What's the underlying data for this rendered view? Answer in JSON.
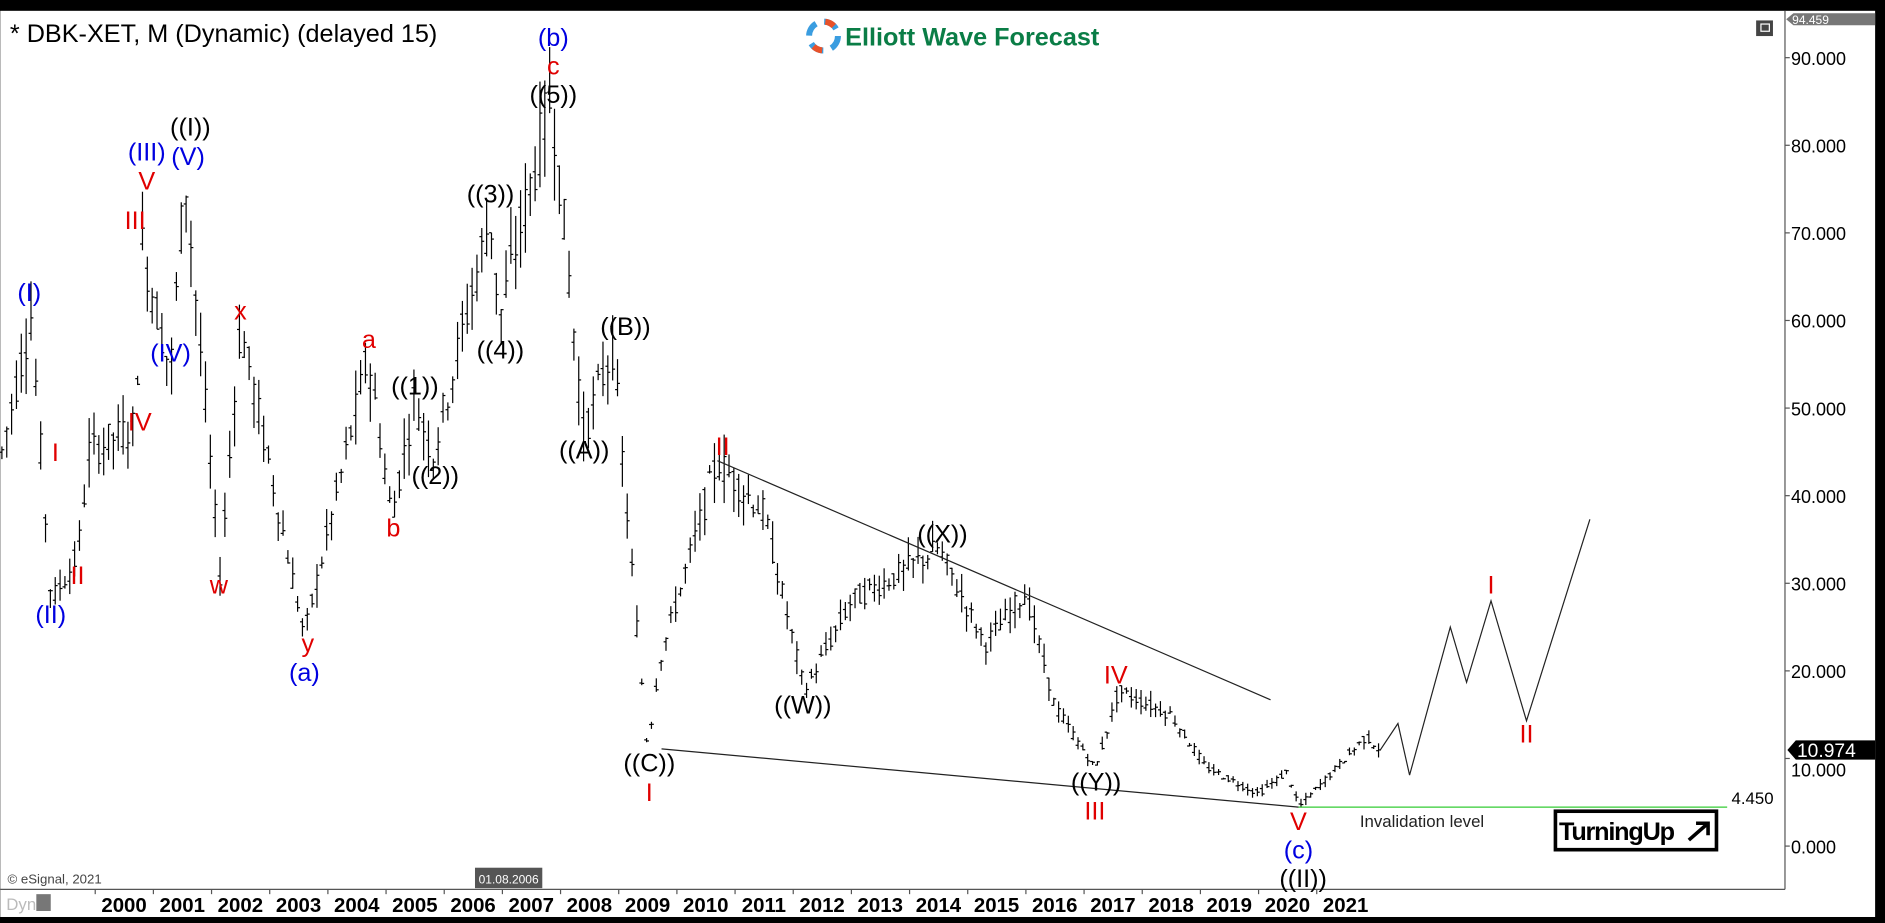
{
  "header": {
    "title": "* DBK-XET, M (Dynamic) (delayed 15)",
    "logo_text": "Elliott Wave Forecast"
  },
  "footer": {
    "copyright": "© eSignal, 2021",
    "dyn_label": "Dyn",
    "cursor_date": "01.08.2006"
  },
  "colors": {
    "red": "#e00000",
    "blue": "#0000e0",
    "black": "#000000",
    "green": "#33cc33",
    "logo_green": "#0a7d46"
  },
  "chart_data": {
    "type": "ohlc",
    "xlabel": "",
    "ylabel": "",
    "ylim": [
      -3,
      94.459
    ],
    "xlim": [
      1997.9,
      2029.0
    ],
    "grid": false,
    "x_ticks": [
      "2000",
      "2001",
      "2002",
      "2003",
      "2004",
      "2005",
      "2006",
      "2007",
      "2008",
      "2009",
      "2010",
      "2011",
      "2012",
      "2013",
      "2014",
      "2015",
      "2016",
      "2017",
      "2018",
      "2019",
      "2020",
      "2021"
    ],
    "y_ticks": [
      "0.000",
      "10.000",
      "20.000",
      "30.000",
      "40.000",
      "50.000",
      "60.000",
      "70.000",
      "80.000",
      "90.000"
    ],
    "y_top_label": "94.459",
    "last_price": "10.974",
    "price_pivots": [
      {
        "x": 1997.9,
        "y": 45
      },
      {
        "x": 1998.4,
        "y": 60.6
      },
      {
        "x": 1998.75,
        "y": 28
      },
      {
        "x": 1999.2,
        "y": 33
      },
      {
        "x": 1999.4,
        "y": 45
      },
      {
        "x": 2000.2,
        "y": 48
      },
      {
        "x": 2000.3,
        "y": 69
      },
      {
        "x": 2000.8,
        "y": 54
      },
      {
        "x": 2001.05,
        "y": 76.7
      },
      {
        "x": 2001.65,
        "y": 31
      },
      {
        "x": 2002.0,
        "y": 59.5
      },
      {
        "x": 2003.1,
        "y": 24
      },
      {
        "x": 2004.2,
        "y": 56
      },
      {
        "x": 2004.6,
        "y": 37.6
      },
      {
        "x": 2005.0,
        "y": 51.3
      },
      {
        "x": 2005.3,
        "y": 44.4
      },
      {
        "x": 2006.3,
        "y": 72
      },
      {
        "x": 2006.45,
        "y": 60
      },
      {
        "x": 2007.35,
        "y": 86
      },
      {
        "x": 2007.9,
        "y": 47
      },
      {
        "x": 2008.4,
        "y": 57
      },
      {
        "x": 2009.0,
        "y": 11
      },
      {
        "x": 2009.2,
        "y": 21
      },
      {
        "x": 2010.2,
        "y": 44
      },
      {
        "x": 2011.0,
        "y": 38
      },
      {
        "x": 2011.7,
        "y": 17.7
      },
      {
        "x": 2012.5,
        "y": 28
      },
      {
        "x": 2013.3,
        "y": 31
      },
      {
        "x": 2014.0,
        "y": 34
      },
      {
        "x": 2014.8,
        "y": 23
      },
      {
        "x": 2015.5,
        "y": 29
      },
      {
        "x": 2016.0,
        "y": 16
      },
      {
        "x": 2016.7,
        "y": 8.8
      },
      {
        "x": 2017.1,
        "y": 17.7
      },
      {
        "x": 2018.0,
        "y": 15
      },
      {
        "x": 2018.6,
        "y": 9
      },
      {
        "x": 2019.5,
        "y": 6
      },
      {
        "x": 2020.0,
        "y": 8.5
      },
      {
        "x": 2020.2,
        "y": 4.45
      },
      {
        "x": 2021.35,
        "y": 12.5
      },
      {
        "x": 2021.6,
        "y": 11
      }
    ],
    "projection": [
      {
        "x": 2021.6,
        "y": 11.0
      },
      {
        "x": 2021.9,
        "y": 14.0
      },
      {
        "x": 2022.1,
        "y": 8.1
      },
      {
        "x": 2022.8,
        "y": 25.0
      },
      {
        "x": 2023.08,
        "y": 18.7
      },
      {
        "x": 2023.5,
        "y": 28.0
      },
      {
        "x": 2024.11,
        "y": 14.3
      },
      {
        "x": 2025.2,
        "y": 37.3
      }
    ],
    "trendlines": [
      {
        "from": {
          "x": 2010.2,
          "y": 44
        },
        "to": {
          "x": 2019.71,
          "y": 16.7
        }
      },
      {
        "from": {
          "x": 2009.24,
          "y": 11.1
        },
        "to": {
          "x": 2020.19,
          "y": 4.45
        }
      }
    ],
    "invalidation": {
      "value": 4.45,
      "value_label": "4.450",
      "label": "Invalidation level",
      "from_x": 2020.19,
      "to_x": 2027.56
    },
    "badge": "TurningUp",
    "wave_labels": [
      {
        "text": "(b)",
        "color": "blue",
        "x": 2007.38,
        "y": 92.1
      },
      {
        "text": "c",
        "color": "red",
        "x": 2007.38,
        "y": 90.0
      },
      {
        "text": "((5))",
        "color": "black",
        "x": 2007.38,
        "y": 87.3
      },
      {
        "text": "((I))",
        "color": "black",
        "x": 2001.14,
        "y": 81.9
      },
      {
        "text": "(III)",
        "color": "blue",
        "x": 2000.39,
        "y": 79.0
      },
      {
        "text": "(V)",
        "color": "blue",
        "x": 2001.1,
        "y": 78.5
      },
      {
        "text": "V",
        "color": "red",
        "x": 2000.39,
        "y": 76.0
      },
      {
        "text": "III",
        "color": "red",
        "x": 2000.19,
        "y": 71.2
      },
      {
        "text": "(I)",
        "color": "blue",
        "x": 1998.37,
        "y": 63.0
      },
      {
        "text": "(IV)",
        "color": "blue",
        "x": 2000.8,
        "y": 56.1
      },
      {
        "text": "IV",
        "color": "red",
        "x": 2000.27,
        "y": 48.2
      },
      {
        "text": "I",
        "color": "red",
        "x": 1998.82,
        "y": 44.7
      },
      {
        "text": "II",
        "color": "red",
        "x": 1999.2,
        "y": 30.7
      },
      {
        "text": "(II)",
        "color": "blue",
        "x": 1998.74,
        "y": 26.2
      },
      {
        "text": "x",
        "color": "red",
        "x": 2002.0,
        "y": 60.9
      },
      {
        "text": "w",
        "color": "red",
        "x": 2001.63,
        "y": 29.6
      },
      {
        "text": "y",
        "color": "red",
        "x": 2003.16,
        "y": 22.9
      },
      {
        "text": "(a)",
        "color": "blue",
        "x": 2003.1,
        "y": 19.6
      },
      {
        "text": "a",
        "color": "red",
        "x": 2004.21,
        "y": 57.6
      },
      {
        "text": "b",
        "color": "red",
        "x": 2004.63,
        "y": 36.1
      },
      {
        "text": "((1))",
        "color": "black",
        "x": 2005.0,
        "y": 52.3
      },
      {
        "text": "((2))",
        "color": "black",
        "x": 2005.35,
        "y": 42.1
      },
      {
        "text": "((3))",
        "color": "black",
        "x": 2006.3,
        "y": 74.2
      },
      {
        "text": "((4))",
        "color": "black",
        "x": 2006.47,
        "y": 56.4
      },
      {
        "text": "((B))",
        "color": "black",
        "x": 2008.62,
        "y": 59.1
      },
      {
        "text": "((A))",
        "color": "black",
        "x": 2007.91,
        "y": 45.0
      },
      {
        "text": "((C))",
        "color": "black",
        "x": 2009.03,
        "y": 9.3
      },
      {
        "text": "I",
        "color": "red",
        "x": 2009.03,
        "y": 5.9
      },
      {
        "text": "II",
        "color": "red",
        "x": 2010.29,
        "y": 45.4
      },
      {
        "text": "((W))",
        "color": "black",
        "x": 2011.67,
        "y": 15.9
      },
      {
        "text": "((X))",
        "color": "black",
        "x": 2014.07,
        "y": 35.4
      },
      {
        "text": "IV",
        "color": "red",
        "x": 2017.05,
        "y": 19.3
      },
      {
        "text": "((Y))",
        "color": "black",
        "x": 2016.71,
        "y": 7.1
      },
      {
        "text": "III",
        "color": "red",
        "x": 2016.69,
        "y": 3.8
      },
      {
        "text": "V",
        "color": "red",
        "x": 2020.19,
        "y": 2.6
      },
      {
        "text": "(c)",
        "color": "blue",
        "x": 2020.19,
        "y": 0.3
      },
      {
        "text": "((II))",
        "color": "black",
        "x": 2020.27,
        "y": -2.5
      },
      {
        "text": "I",
        "color": "red",
        "x": 2023.5,
        "y": 29.6
      },
      {
        "text": "II",
        "color": "red",
        "x": 2024.11,
        "y": 12.6
      }
    ]
  }
}
